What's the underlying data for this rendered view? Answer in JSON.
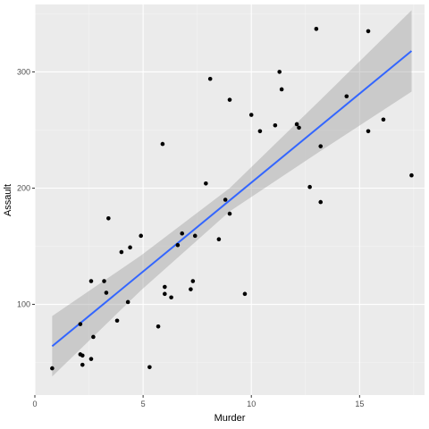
{
  "chart_data": {
    "type": "scatter",
    "xlabel": "Murder",
    "ylabel": "Assault",
    "xlim": [
      0,
      18
    ],
    "ylim": [
      22,
      358
    ],
    "x_ticks": [
      0,
      5,
      10,
      15
    ],
    "x_tick_labels": [
      "0",
      "5",
      "10",
      "15"
    ],
    "y_ticks": [
      100,
      200,
      300
    ],
    "y_tick_labels": [
      "100",
      "200",
      "300"
    ],
    "grid": true,
    "points": [
      {
        "x": 13.2,
        "y": 236
      },
      {
        "x": 10.0,
        "y": 263
      },
      {
        "x": 8.1,
        "y": 294
      },
      {
        "x": 8.8,
        "y": 190
      },
      {
        "x": 9.0,
        "y": 276
      },
      {
        "x": 7.9,
        "y": 204
      },
      {
        "x": 3.3,
        "y": 110
      },
      {
        "x": 5.9,
        "y": 238
      },
      {
        "x": 15.4,
        "y": 335
      },
      {
        "x": 17.4,
        "y": 211
      },
      {
        "x": 5.3,
        "y": 46
      },
      {
        "x": 2.6,
        "y": 120
      },
      {
        "x": 10.4,
        "y": 249
      },
      {
        "x": 7.2,
        "y": 113
      },
      {
        "x": 2.2,
        "y": 56
      },
      {
        "x": 6.0,
        "y": 115
      },
      {
        "x": 9.7,
        "y": 109
      },
      {
        "x": 15.4,
        "y": 249
      },
      {
        "x": 2.1,
        "y": 83
      },
      {
        "x": 11.3,
        "y": 300
      },
      {
        "x": 4.4,
        "y": 149
      },
      {
        "x": 12.1,
        "y": 255
      },
      {
        "x": 2.7,
        "y": 72
      },
      {
        "x": 16.1,
        "y": 259
      },
      {
        "x": 9.0,
        "y": 178
      },
      {
        "x": 6.0,
        "y": 109
      },
      {
        "x": 4.3,
        "y": 102
      },
      {
        "x": 12.2,
        "y": 252
      },
      {
        "x": 2.1,
        "y": 57
      },
      {
        "x": 7.4,
        "y": 159
      },
      {
        "x": 11.4,
        "y": 285
      },
      {
        "x": 11.1,
        "y": 254
      },
      {
        "x": 13.0,
        "y": 337
      },
      {
        "x": 0.8,
        "y": 45
      },
      {
        "x": 7.3,
        "y": 120
      },
      {
        "x": 6.6,
        "y": 151
      },
      {
        "x": 4.9,
        "y": 159
      },
      {
        "x": 6.3,
        "y": 106
      },
      {
        "x": 3.4,
        "y": 174
      },
      {
        "x": 14.4,
        "y": 279
      },
      {
        "x": 3.8,
        "y": 86
      },
      {
        "x": 13.2,
        "y": 188
      },
      {
        "x": 12.7,
        "y": 201
      },
      {
        "x": 3.2,
        "y": 120
      },
      {
        "x": 2.2,
        "y": 48
      },
      {
        "x": 8.5,
        "y": 156
      },
      {
        "x": 4.0,
        "y": 145
      },
      {
        "x": 5.7,
        "y": 81
      },
      {
        "x": 2.6,
        "y": 53
      },
      {
        "x": 6.8,
        "y": 161
      }
    ],
    "fit": {
      "method": "lm",
      "color": "#3366FF",
      "band_color": "#999999",
      "x": [
        0.8,
        4.9,
        9.0,
        13.2,
        17.4
      ],
      "y": [
        64,
        127,
        190,
        254,
        318
      ],
      "lower": [
        38,
        112,
        180,
        232,
        283
      ],
      "upper": [
        90,
        142,
        200,
        276,
        353
      ]
    },
    "colors": {
      "panel_background": "#EBEBEB",
      "grid_major": "#FFFFFF",
      "points": "#000000"
    }
  }
}
